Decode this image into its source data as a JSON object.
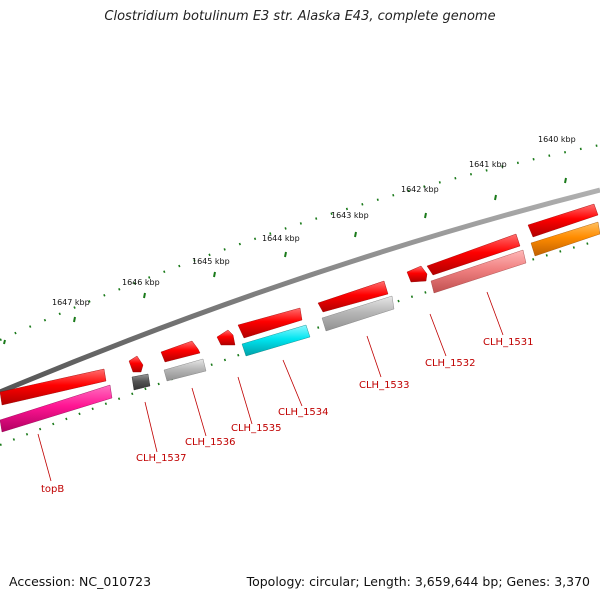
{
  "title": "Clostridium botulinum E3 str. Alaska E43, complete genome",
  "footer": {
    "accession_label": "Accession:",
    "accession": "NC_010723",
    "topology_label": "Topology:",
    "topology": "circular",
    "length_label": "Length:",
    "length": "3,659,644 bp",
    "genes_label": "Genes:",
    "genes": "3,370"
  },
  "scale_labels": [
    "1640 kbp",
    "1641 kbp",
    "1642 kbp",
    "1643 kbp",
    "1644 kbp",
    "1645 kbp",
    "1646 kbp",
    "1647 kbp"
  ],
  "genes": [
    {
      "name": "topB",
      "color": "#ff1493"
    },
    {
      "name": "CLH_1537",
      "color": "#555555"
    },
    {
      "name": "CLH_1536",
      "color": "#b8b8b8"
    },
    {
      "name": "CLH_1535",
      "color": "#ff0000"
    },
    {
      "name": "CLH_1534",
      "color": "#00e5f0"
    },
    {
      "name": "CLH_1533",
      "color": "#a8a8a8"
    },
    {
      "name": "CLH_1532",
      "color": "#ff0000"
    },
    {
      "name": "CLH_1531",
      "color": "#f08080"
    },
    {
      "name": "",
      "color": "#ff8c00"
    }
  ],
  "colors": {
    "backbone": "#808080",
    "forward_strand": "#ff0000",
    "ticks": "#1a7a1a",
    "labels": "#c00000"
  }
}
